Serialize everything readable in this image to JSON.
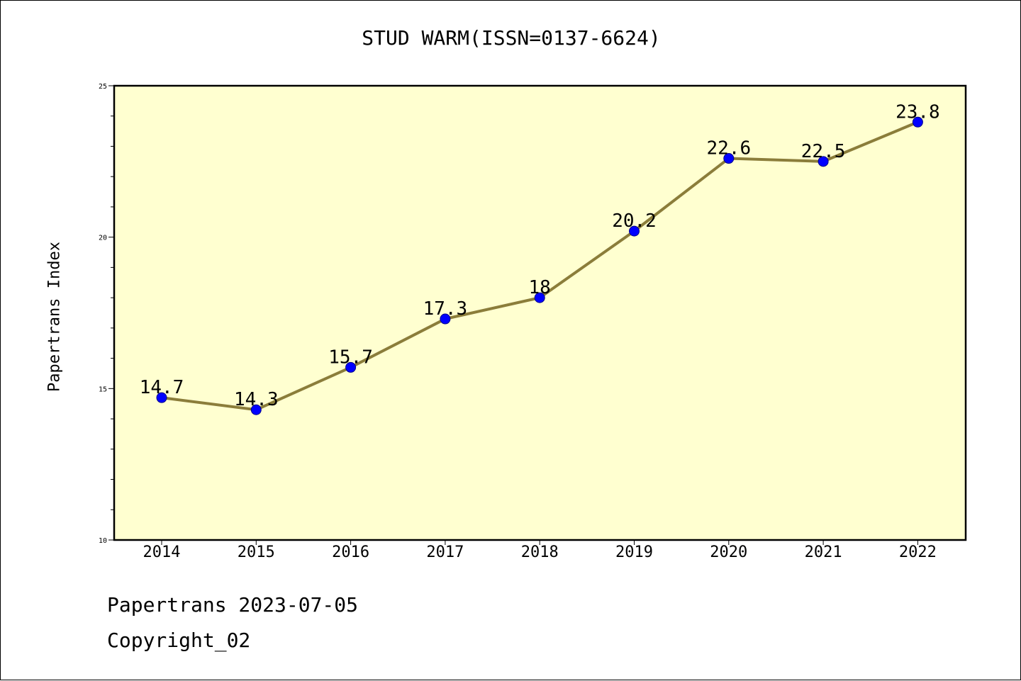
{
  "chart_data": {
    "type": "line",
    "title": "STUD WARM(ISSN=0137-6624)",
    "xlabel": "",
    "ylabel": "Papertrans Index",
    "categories": [
      "2014",
      "2015",
      "2016",
      "2017",
      "2018",
      "2019",
      "2020",
      "2021",
      "2022"
    ],
    "series": [
      {
        "values": [
          14.7,
          14.3,
          15.7,
          17.3,
          18,
          20.2,
          22.6,
          22.5,
          23.8
        ]
      }
    ],
    "data_labels": [
      "14.7",
      "14.3",
      "15.7",
      "17.3",
      "18",
      "20.2",
      "22.6",
      "22.5",
      "23.8"
    ],
    "ylim": [
      10,
      25
    ],
    "y_ticks": [
      10,
      15,
      20,
      25
    ],
    "grid": false,
    "colors": {
      "plot_background": "#ffffd0",
      "line": "#8b7d3a",
      "marker": "#0000ff"
    }
  },
  "footer": {
    "line1": "Papertrans 2023-07-05",
    "line2": "Copyright_02"
  }
}
